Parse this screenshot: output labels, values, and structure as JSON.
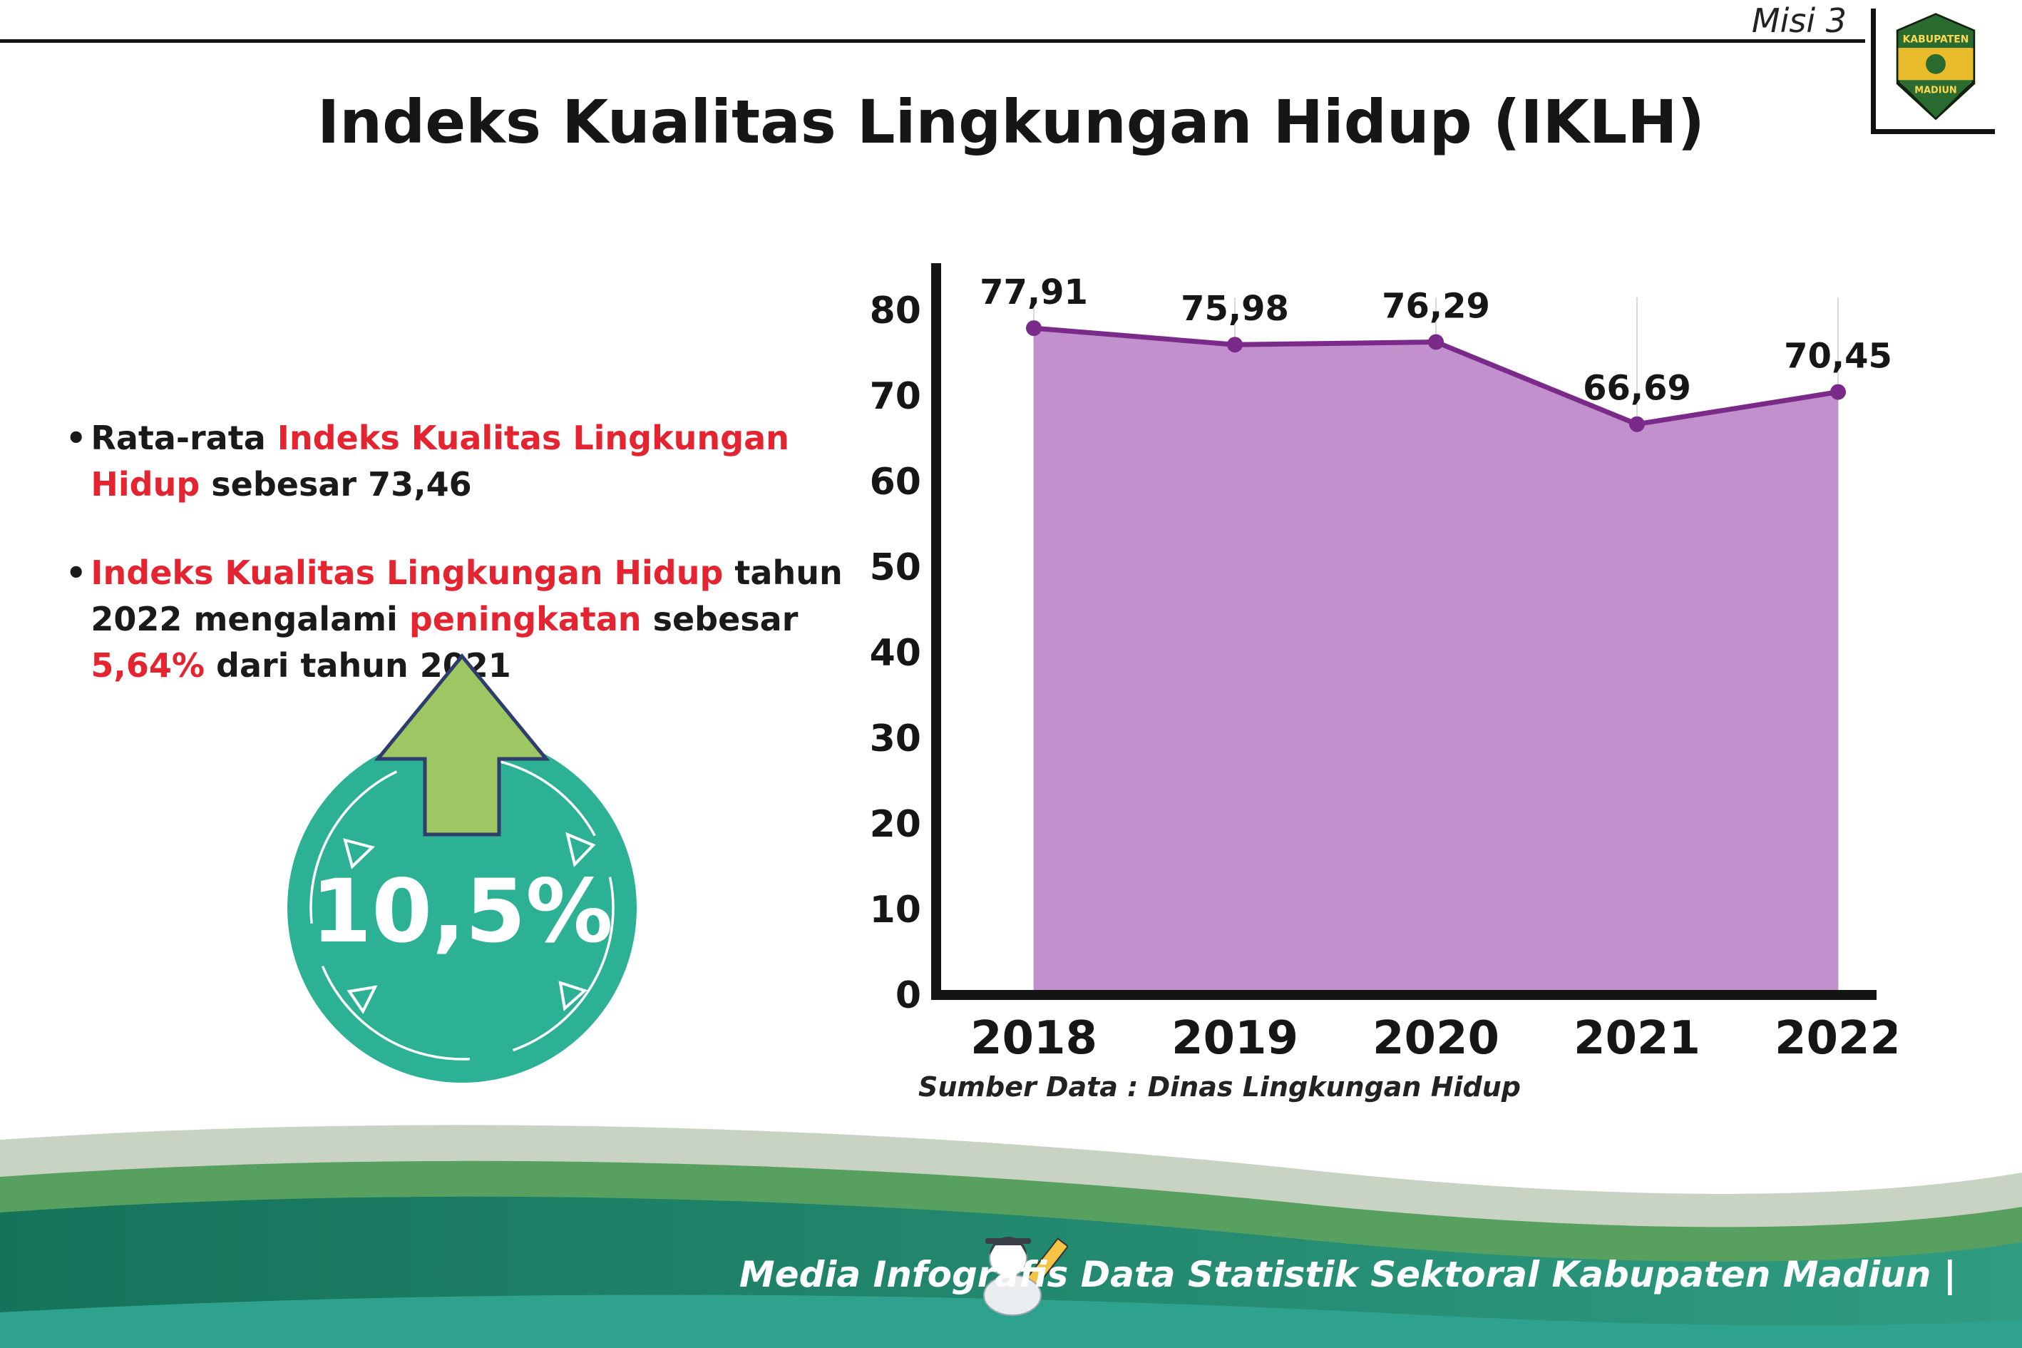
{
  "header": {
    "misi_label": "Misi 3",
    "logo": {
      "top_text": "KABUPATEN",
      "bottom_text": "MADIUN"
    }
  },
  "title": "Indeks Kualitas Lingkungan Hidup (IKLH)",
  "bullets": {
    "marker": "•",
    "item1": {
      "pre": "Rata-rata ",
      "highlight": "Indeks Kualitas Lingkungan Hidup",
      "post": " sebesar 73,46"
    },
    "item2": {
      "highlight1": "Indeks Kualitas Lingkungan Hidup",
      "mid1": " tahun 2022 mengalami ",
      "highlight2": "peningkatan",
      "mid2": " sebesar ",
      "highlight3": "5,64%",
      "post": " dari tahun 2021"
    }
  },
  "badge": {
    "value": "10,5%",
    "circle_color": "#2cb194",
    "arrow_color": "#9cc763"
  },
  "chart_data": {
    "type": "area",
    "categories": [
      "2018",
      "2019",
      "2020",
      "2021",
      "2022"
    ],
    "values": [
      77.91,
      75.98,
      76.29,
      66.69,
      70.45
    ],
    "value_labels": [
      "77,91",
      "75,98",
      "76,29",
      "66,69",
      "70,45"
    ],
    "ylim": [
      0,
      80
    ],
    "yticks": [
      0,
      10,
      20,
      30,
      40,
      50,
      60,
      70,
      80
    ],
    "grid": "vertical-light",
    "legend": "none",
    "line_color": "#7a2b8a",
    "point_color": "#7a2b8a",
    "fill_color": "#c291cd",
    "source": "Sumber Data : Dinas Lingkungan Hidup"
  },
  "footer": {
    "text": "Media Infografis Data Statistik Sektoral Kabupaten Madiun |"
  }
}
